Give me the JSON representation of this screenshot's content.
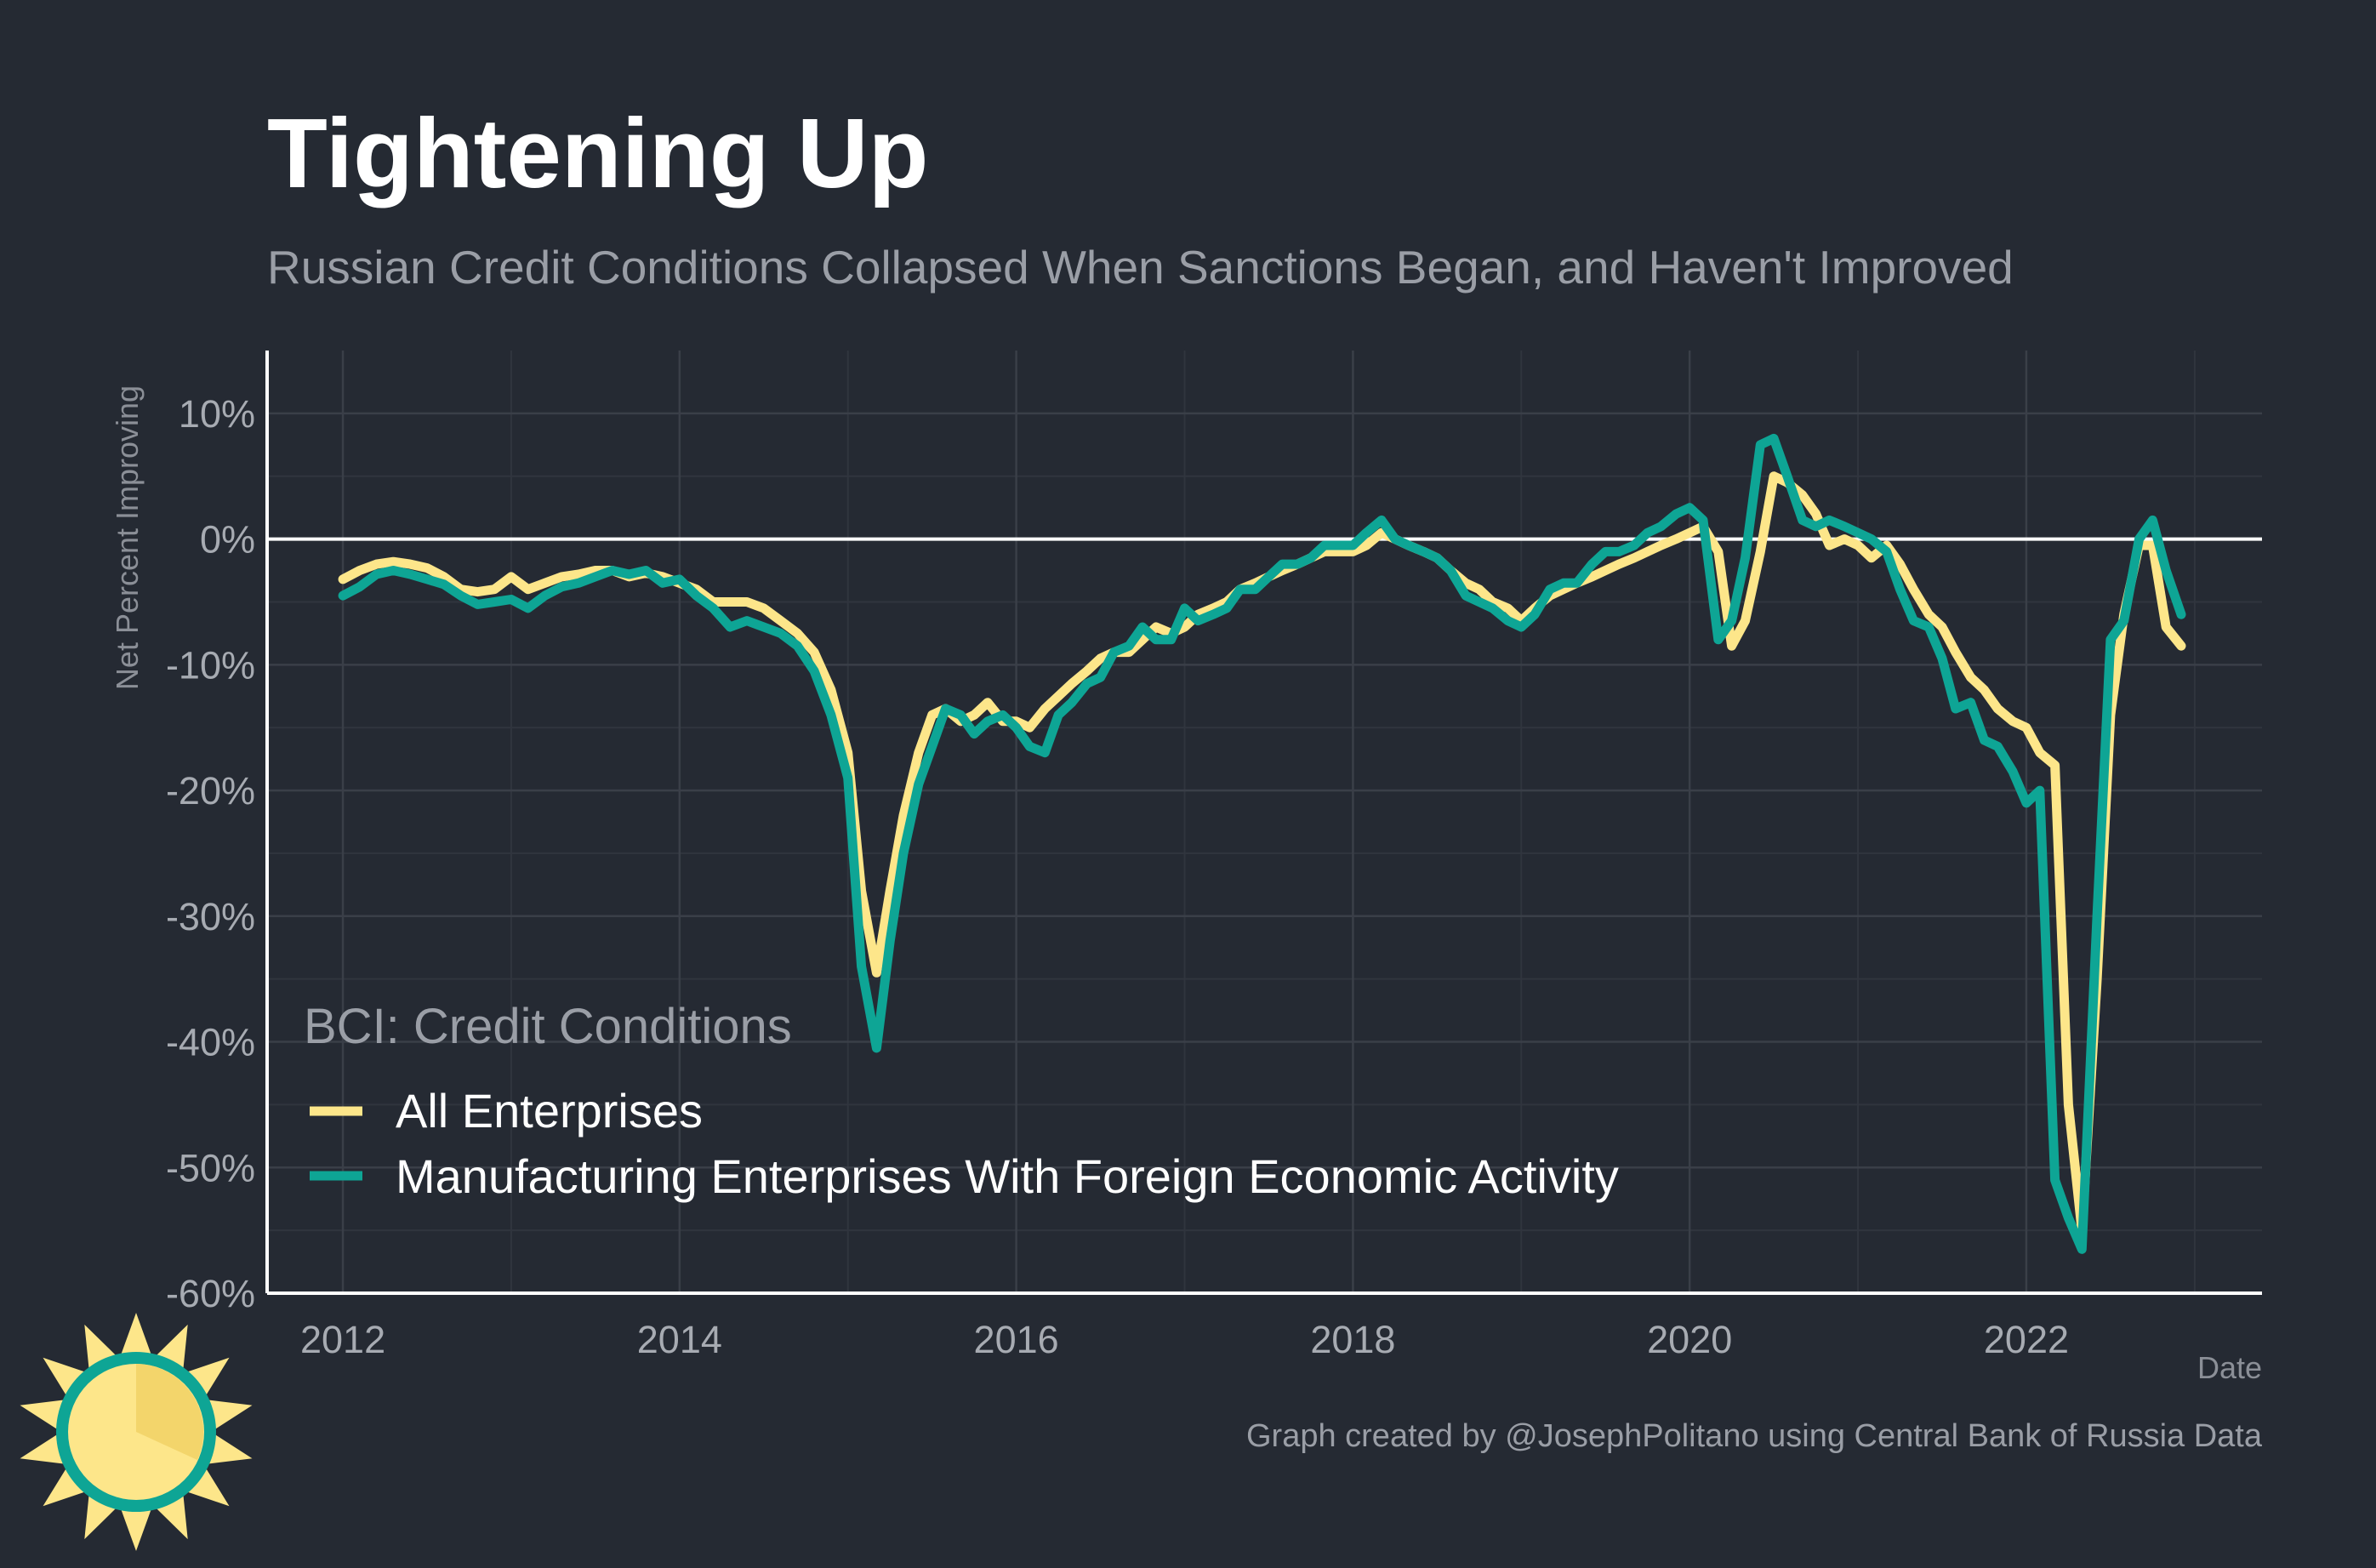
{
  "chart_data": {
    "type": "line",
    "title": "Tightening Up",
    "subtitle": "Russian Credit Conditions Collapsed When Sanctions Began, and Haven't Improved",
    "ylabel": "Net Percent Improving",
    "xlabel": "Date",
    "caption": "Graph created by @JosephPolitano using Central Bank of Russia Data",
    "legend_title": "BCI: Credit Conditions",
    "legend_position": "bottom-left",
    "grid": true,
    "xlim": [
      2011.55,
      2023.4
    ],
    "ylim": [
      -60,
      15
    ],
    "x_ticks": [
      2012,
      2014,
      2016,
      2018,
      2020,
      2022
    ],
    "x_tick_labels": [
      "2012",
      "2014",
      "2016",
      "2018",
      "2020",
      "2022"
    ],
    "y_ticks": [
      10,
      0,
      -10,
      -20,
      -30,
      -40,
      -50,
      -60
    ],
    "y_tick_labels": [
      "10%",
      "0%",
      "-10%",
      "-20%",
      "-30%",
      "-40%",
      "-50%",
      "-60%"
    ],
    "reference_line": 0,
    "series": [
      {
        "name": "All Enterprises",
        "color": "#fde68a",
        "points": [
          [
            2012.0,
            -3.2
          ],
          [
            2012.1,
            -2.5
          ],
          [
            2012.2,
            -2.0
          ],
          [
            2012.3,
            -1.8
          ],
          [
            2012.4,
            -2.0
          ],
          [
            2012.5,
            -2.3
          ],
          [
            2012.6,
            -3.0
          ],
          [
            2012.7,
            -4.0
          ],
          [
            2012.8,
            -4.2
          ],
          [
            2012.9,
            -4.0
          ],
          [
            2013.0,
            -3.0
          ],
          [
            2013.1,
            -4.0
          ],
          [
            2013.2,
            -3.5
          ],
          [
            2013.3,
            -3.0
          ],
          [
            2013.4,
            -2.8
          ],
          [
            2013.5,
            -2.5
          ],
          [
            2013.6,
            -2.5
          ],
          [
            2013.7,
            -3.0
          ],
          [
            2013.8,
            -2.7
          ],
          [
            2013.9,
            -3.0
          ],
          [
            2014.0,
            -3.5
          ],
          [
            2014.1,
            -4.0
          ],
          [
            2014.2,
            -5.0
          ],
          [
            2014.3,
            -5.0
          ],
          [
            2014.4,
            -5.0
          ],
          [
            2014.5,
            -5.5
          ],
          [
            2014.6,
            -6.5
          ],
          [
            2014.7,
            -7.5
          ],
          [
            2014.8,
            -9.0
          ],
          [
            2014.9,
            -12.0
          ],
          [
            2015.0,
            -17.0
          ],
          [
            2015.08,
            -28.0
          ],
          [
            2015.17,
            -34.5
          ],
          [
            2015.25,
            -28.0
          ],
          [
            2015.33,
            -22.0
          ],
          [
            2015.42,
            -17.0
          ],
          [
            2015.5,
            -14.0
          ],
          [
            2015.58,
            -13.5
          ],
          [
            2015.67,
            -14.5
          ],
          [
            2015.75,
            -14.0
          ],
          [
            2015.83,
            -13.0
          ],
          [
            2015.92,
            -14.5
          ],
          [
            2016.0,
            -14.5
          ],
          [
            2016.08,
            -15.0
          ],
          [
            2016.17,
            -13.5
          ],
          [
            2016.25,
            -12.5
          ],
          [
            2016.33,
            -11.5
          ],
          [
            2016.42,
            -10.5
          ],
          [
            2016.5,
            -9.5
          ],
          [
            2016.58,
            -9.0
          ],
          [
            2016.67,
            -9.0
          ],
          [
            2016.75,
            -8.0
          ],
          [
            2016.83,
            -7.0
          ],
          [
            2016.92,
            -7.5
          ],
          [
            2017.0,
            -7.0
          ],
          [
            2017.08,
            -6.0
          ],
          [
            2017.17,
            -5.5
          ],
          [
            2017.25,
            -5.0
          ],
          [
            2017.33,
            -4.0
          ],
          [
            2017.42,
            -3.5
          ],
          [
            2017.5,
            -3.0
          ],
          [
            2017.58,
            -2.5
          ],
          [
            2017.67,
            -2.0
          ],
          [
            2017.75,
            -1.5
          ],
          [
            2017.83,
            -1.0
          ],
          [
            2017.92,
            -1.0
          ],
          [
            2018.0,
            -1.0
          ],
          [
            2018.08,
            -0.5
          ],
          [
            2018.17,
            0.5
          ],
          [
            2018.25,
            0.0
          ],
          [
            2018.33,
            -0.5
          ],
          [
            2018.42,
            -1.0
          ],
          [
            2018.5,
            -1.5
          ],
          [
            2018.58,
            -2.5
          ],
          [
            2018.67,
            -3.5
          ],
          [
            2018.75,
            -4.0
          ],
          [
            2018.83,
            -5.0
          ],
          [
            2018.92,
            -5.5
          ],
          [
            2019.0,
            -6.5
          ],
          [
            2019.08,
            -5.5
          ],
          [
            2019.17,
            -4.5
          ],
          [
            2019.25,
            -4.0
          ],
          [
            2019.33,
            -3.5
          ],
          [
            2019.42,
            -3.0
          ],
          [
            2019.5,
            -2.5
          ],
          [
            2019.58,
            -2.0
          ],
          [
            2019.67,
            -1.5
          ],
          [
            2019.75,
            -1.0
          ],
          [
            2019.83,
            -0.5
          ],
          [
            2019.92,
            0.0
          ],
          [
            2020.0,
            0.5
          ],
          [
            2020.08,
            1.0
          ],
          [
            2020.17,
            -1.0
          ],
          [
            2020.25,
            -8.5
          ],
          [
            2020.33,
            -6.5
          ],
          [
            2020.42,
            -1.0
          ],
          [
            2020.5,
            5.0
          ],
          [
            2020.58,
            4.5
          ],
          [
            2020.67,
            3.5
          ],
          [
            2020.75,
            2.0
          ],
          [
            2020.83,
            -0.5
          ],
          [
            2020.92,
            0.0
          ],
          [
            2021.0,
            -0.5
          ],
          [
            2021.08,
            -1.5
          ],
          [
            2021.17,
            -0.5
          ],
          [
            2021.25,
            -2.0
          ],
          [
            2021.33,
            -4.0
          ],
          [
            2021.42,
            -6.0
          ],
          [
            2021.5,
            -7.0
          ],
          [
            2021.58,
            -9.0
          ],
          [
            2021.67,
            -11.0
          ],
          [
            2021.75,
            -12.0
          ],
          [
            2021.83,
            -13.5
          ],
          [
            2021.92,
            -14.5
          ],
          [
            2022.0,
            -15.0
          ],
          [
            2022.08,
            -17.0
          ],
          [
            2022.17,
            -18.0
          ],
          [
            2022.25,
            -45.0
          ],
          [
            2022.33,
            -55.0
          ],
          [
            2022.42,
            -35.0
          ],
          [
            2022.5,
            -14.0
          ],
          [
            2022.58,
            -6.0
          ],
          [
            2022.67,
            -0.5
          ],
          [
            2022.75,
            -0.5
          ],
          [
            2022.83,
            -7.0
          ],
          [
            2022.92,
            -8.5
          ]
        ]
      },
      {
        "name": "Manufacturing Enterprises With Foreign Economic Activity",
        "color": "#0ea595",
        "points": [
          [
            2012.0,
            -4.5
          ],
          [
            2012.1,
            -3.8
          ],
          [
            2012.2,
            -2.8
          ],
          [
            2012.3,
            -2.5
          ],
          [
            2012.4,
            -2.8
          ],
          [
            2012.5,
            -3.2
          ],
          [
            2012.6,
            -3.6
          ],
          [
            2012.7,
            -4.5
          ],
          [
            2012.8,
            -5.2
          ],
          [
            2012.9,
            -5.0
          ],
          [
            2013.0,
            -4.8
          ],
          [
            2013.1,
            -5.5
          ],
          [
            2013.2,
            -4.5
          ],
          [
            2013.3,
            -3.8
          ],
          [
            2013.4,
            -3.5
          ],
          [
            2013.5,
            -3.0
          ],
          [
            2013.6,
            -2.5
          ],
          [
            2013.7,
            -2.8
          ],
          [
            2013.8,
            -2.5
          ],
          [
            2013.9,
            -3.5
          ],
          [
            2014.0,
            -3.2
          ],
          [
            2014.1,
            -4.5
          ],
          [
            2014.2,
            -5.5
          ],
          [
            2014.3,
            -7.0
          ],
          [
            2014.4,
            -6.5
          ],
          [
            2014.5,
            -7.0
          ],
          [
            2014.6,
            -7.5
          ],
          [
            2014.7,
            -8.5
          ],
          [
            2014.8,
            -10.5
          ],
          [
            2014.9,
            -14.0
          ],
          [
            2015.0,
            -19.0
          ],
          [
            2015.08,
            -34.0
          ],
          [
            2015.17,
            -40.5
          ],
          [
            2015.25,
            -32.0
          ],
          [
            2015.33,
            -25.0
          ],
          [
            2015.42,
            -19.5
          ],
          [
            2015.5,
            -16.5
          ],
          [
            2015.58,
            -13.5
          ],
          [
            2015.67,
            -14.0
          ],
          [
            2015.75,
            -15.5
          ],
          [
            2015.83,
            -14.5
          ],
          [
            2015.92,
            -14.0
          ],
          [
            2016.0,
            -15.0
          ],
          [
            2016.08,
            -16.5
          ],
          [
            2016.17,
            -17.0
          ],
          [
            2016.25,
            -14.0
          ],
          [
            2016.33,
            -13.0
          ],
          [
            2016.42,
            -11.5
          ],
          [
            2016.5,
            -11.0
          ],
          [
            2016.58,
            -9.0
          ],
          [
            2016.67,
            -8.5
          ],
          [
            2016.75,
            -7.0
          ],
          [
            2016.83,
            -8.0
          ],
          [
            2016.92,
            -8.0
          ],
          [
            2017.0,
            -5.5
          ],
          [
            2017.08,
            -6.5
          ],
          [
            2017.17,
            -6.0
          ],
          [
            2017.25,
            -5.5
          ],
          [
            2017.33,
            -4.0
          ],
          [
            2017.42,
            -4.0
          ],
          [
            2017.5,
            -3.0
          ],
          [
            2017.58,
            -2.0
          ],
          [
            2017.67,
            -2.0
          ],
          [
            2017.75,
            -1.5
          ],
          [
            2017.83,
            -0.5
          ],
          [
            2017.92,
            -0.5
          ],
          [
            2018.0,
            -0.5
          ],
          [
            2018.08,
            0.5
          ],
          [
            2018.17,
            1.5
          ],
          [
            2018.25,
            0.0
          ],
          [
            2018.33,
            -0.5
          ],
          [
            2018.42,
            -1.0
          ],
          [
            2018.5,
            -1.5
          ],
          [
            2018.58,
            -2.5
          ],
          [
            2018.67,
            -4.5
          ],
          [
            2018.75,
            -5.0
          ],
          [
            2018.83,
            -5.5
          ],
          [
            2018.92,
            -6.5
          ],
          [
            2019.0,
            -7.0
          ],
          [
            2019.08,
            -6.0
          ],
          [
            2019.17,
            -4.0
          ],
          [
            2019.25,
            -3.5
          ],
          [
            2019.33,
            -3.5
          ],
          [
            2019.42,
            -2.0
          ],
          [
            2019.5,
            -1.0
          ],
          [
            2019.58,
            -1.0
          ],
          [
            2019.67,
            -0.5
          ],
          [
            2019.75,
            0.5
          ],
          [
            2019.83,
            1.0
          ],
          [
            2019.92,
            2.0
          ],
          [
            2020.0,
            2.5
          ],
          [
            2020.08,
            1.5
          ],
          [
            2020.17,
            -8.0
          ],
          [
            2020.25,
            -6.5
          ],
          [
            2020.33,
            -1.5
          ],
          [
            2020.42,
            7.5
          ],
          [
            2020.5,
            8.0
          ],
          [
            2020.58,
            5.0
          ],
          [
            2020.67,
            1.5
          ],
          [
            2020.75,
            1.0
          ],
          [
            2020.83,
            1.5
          ],
          [
            2020.92,
            1.0
          ],
          [
            2021.0,
            0.5
          ],
          [
            2021.08,
            0.0
          ],
          [
            2021.17,
            -1.0
          ],
          [
            2021.25,
            -4.0
          ],
          [
            2021.33,
            -6.5
          ],
          [
            2021.42,
            -7.0
          ],
          [
            2021.5,
            -9.5
          ],
          [
            2021.58,
            -13.5
          ],
          [
            2021.67,
            -13.0
          ],
          [
            2021.75,
            -16.0
          ],
          [
            2021.83,
            -16.5
          ],
          [
            2021.92,
            -18.5
          ],
          [
            2022.0,
            -21.0
          ],
          [
            2022.08,
            -20.0
          ],
          [
            2022.17,
            -51.0
          ],
          [
            2022.25,
            -54.0
          ],
          [
            2022.33,
            -56.5
          ],
          [
            2022.42,
            -30.0
          ],
          [
            2022.5,
            -8.0
          ],
          [
            2022.58,
            -6.5
          ],
          [
            2022.67,
            0.0
          ],
          [
            2022.75,
            1.5
          ],
          [
            2022.83,
            -2.5
          ],
          [
            2022.92,
            -6.0
          ]
        ]
      }
    ]
  }
}
